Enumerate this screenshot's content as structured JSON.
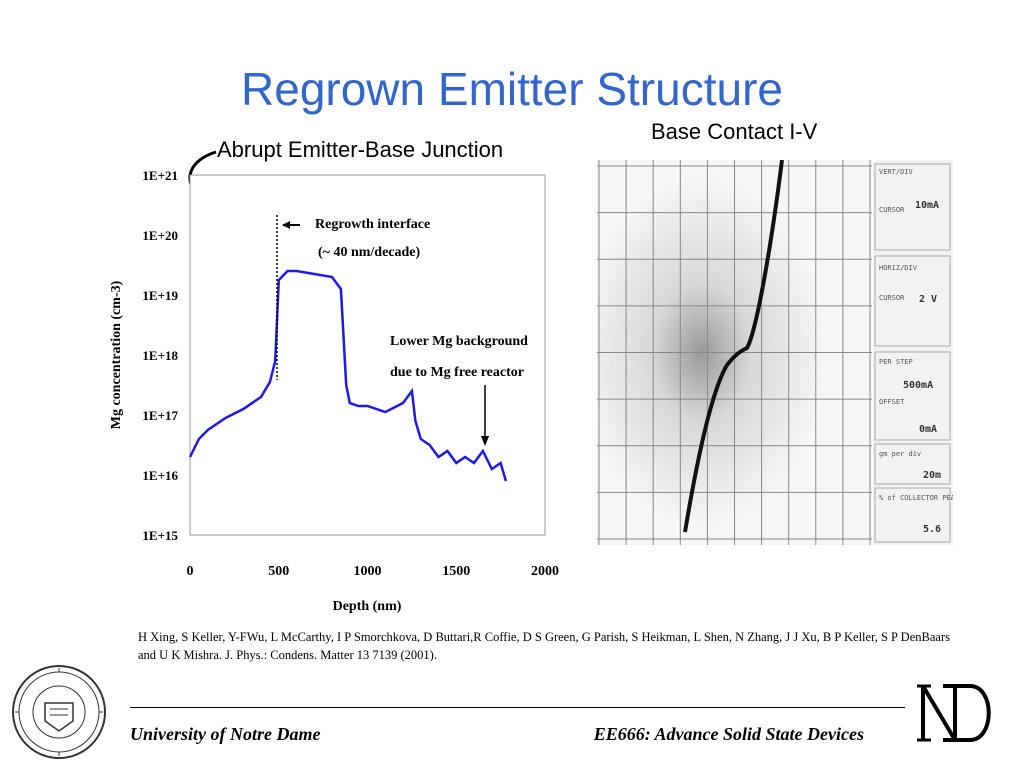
{
  "slide": {
    "title": "Regrown Emitter Structure",
    "junction_label": "Abrupt Emitter-Base Junction",
    "iv_label": "Base Contact I-V",
    "reference": "H Xing, S Keller, Y-FWu, L McCarthy, I P Smorchkova, D Buttari,R Coffie, D S Green, G Parish, S Heikman, L Shen, N Zhang, J J Xu, B P Keller, S P DenBaars and U K Mishra. J. Phys.: Condens. Matter 13 7139 (2001).",
    "footer_left": "University of Notre Dame",
    "footer_right": "EE666: Advance Solid State Devices"
  },
  "colors": {
    "title": "#3366cc",
    "profile": "#1a1aee"
  },
  "chart_data": {
    "type": "line",
    "xlabel": "Depth (nm)",
    "ylabel": "Mg concentration (cm-3)",
    "x_ticks": [
      "0",
      "500",
      "1000",
      "1500",
      "2000"
    ],
    "y_ticks": [
      "1E+21",
      "1E+20",
      "1E+19",
      "1E+18",
      "1E+17",
      "1E+16",
      "1E+15"
    ],
    "xlim": [
      0,
      2000
    ],
    "ylog_range": [
      15,
      21
    ],
    "annotations": [
      {
        "text_lines": [
          "Regrowth interface",
          "(~ 40 nm/decade)"
        ]
      },
      {
        "text_lines": [
          "Lower Mg background",
          "due to Mg free reactor"
        ]
      }
    ],
    "series": [
      {
        "x": [
          0,
          50,
          100,
          200,
          300,
          400,
          450,
          480,
          500,
          550,
          600,
          700,
          800,
          850,
          880,
          900,
          950,
          1000,
          1100,
          1200,
          1250,
          1270,
          1300,
          1350,
          1400,
          1450,
          1500,
          1550,
          1600,
          1650,
          1700,
          1750,
          1780
        ],
        "y": [
          16.3,
          16.6,
          16.75,
          16.95,
          17.1,
          17.3,
          17.55,
          17.9,
          19.25,
          19.4,
          19.4,
          19.35,
          19.3,
          19.1,
          17.5,
          17.2,
          17.15,
          17.15,
          17.05,
          17.2,
          17.4,
          16.9,
          16.6,
          16.5,
          16.3,
          16.4,
          16.2,
          16.3,
          16.2,
          16.4,
          16.1,
          16.2,
          15.9
        ]
      }
    ]
  },
  "scope": {
    "vert_div_label": "VERT/DIV",
    "vert_div_value": "10mA",
    "cursor1_label": "CURSOR",
    "horiz_div_label": "HORIZ/DIV",
    "horiz_div_value": "2 V",
    "cursor2_label": "CURSOR",
    "per_step_label": "PER STEP",
    "per_step_value": "500mA",
    "offset_label": "OFFSET",
    "offset_value": "0mA",
    "gm_label": "gm per div",
    "gm_value": "20m",
    "collector_label": "% of COLLECTOR PEAK VOLTS",
    "collector_value": "5.6"
  }
}
